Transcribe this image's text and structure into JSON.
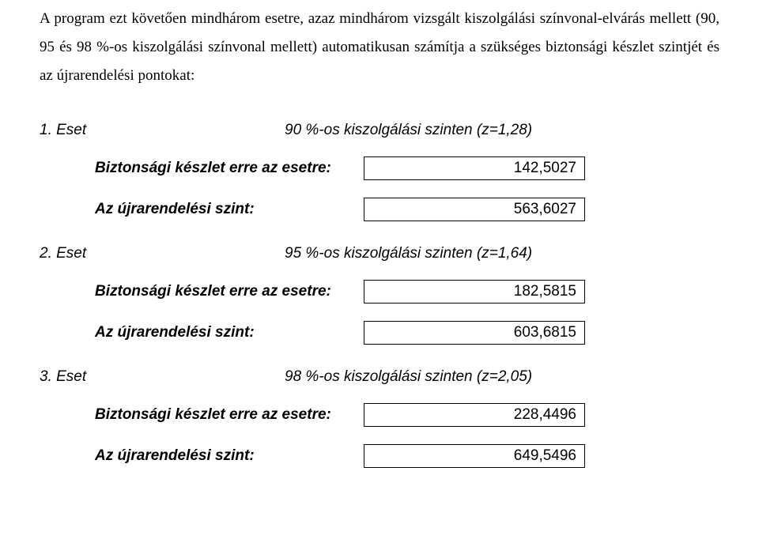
{
  "intro": "A program ezt követően mindhárom esetre, azaz mindhárom vizsgált kiszolgálási színvonal-elvárás mellett (90, 95 és 98 %-os kiszolgálási színvonal mellett) automatikusan számítja a szükséges biztonsági készlet szintjét és az újrarendelési pontokat:",
  "labels": {
    "safety_stock": "Biztonsági készlet erre az esetre:",
    "reorder_point": "Az újrarendelési szint:"
  },
  "cases": [
    {
      "num": "1. Eset",
      "title": "90 %-os kiszolgálási szinten (z=1,28)",
      "safety_stock": "142,5027",
      "reorder_point": "563,6027"
    },
    {
      "num": "2. Eset",
      "title": "95 %-os kiszolgálási szinten (z=1,64)",
      "safety_stock": "182,5815",
      "reorder_point": "603,6815"
    },
    {
      "num": "3. Eset",
      "title": "98 %-os kiszolgálási szinten (z=2,05)",
      "safety_stock": "228,4496",
      "reorder_point": "649,5496"
    }
  ]
}
